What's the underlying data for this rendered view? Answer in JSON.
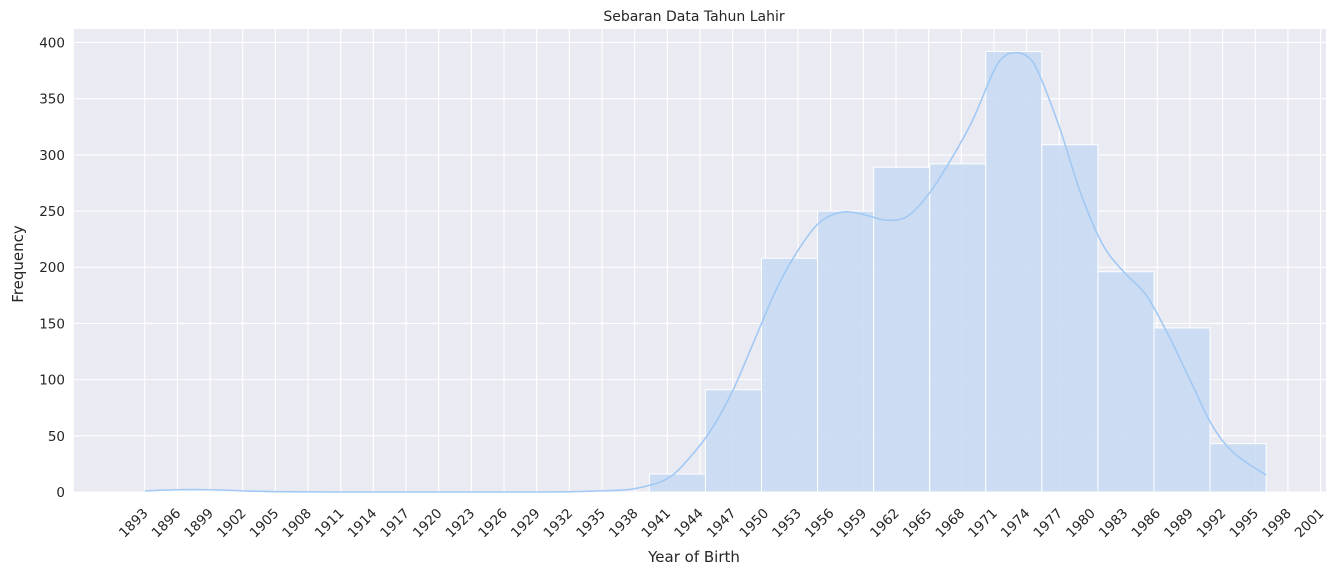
{
  "chart_data": {
    "type": "bar",
    "title": "Sebaran Data Tahun Lahir",
    "xlabel": "Year of Birth",
    "ylabel": "Frequency",
    "xlim": [
      1886.5,
      2001.5
    ],
    "ylim": [
      0,
      412
    ],
    "grid": true,
    "x_ticks": [
      1893,
      1896,
      1899,
      1902,
      1905,
      1908,
      1911,
      1914,
      1917,
      1920,
      1923,
      1926,
      1929,
      1932,
      1935,
      1938,
      1941,
      1944,
      1947,
      1950,
      1953,
      1956,
      1959,
      1962,
      1965,
      1968,
      1971,
      1974,
      1977,
      1980,
      1983,
      1986,
      1989,
      1992,
      1995,
      1998,
      2001
    ],
    "y_ticks": [
      0,
      50,
      100,
      150,
      200,
      250,
      300,
      350,
      400
    ],
    "bins": [
      {
        "start": 1893.0,
        "end": 1898.15,
        "count": 1
      },
      {
        "start": 1898.15,
        "end": 1903.3,
        "count": 1
      },
      {
        "start": 1903.3,
        "end": 1908.45,
        "count": 0
      },
      {
        "start": 1908.45,
        "end": 1913.6,
        "count": 0
      },
      {
        "start": 1913.6,
        "end": 1918.75,
        "count": 0
      },
      {
        "start": 1918.75,
        "end": 1923.9,
        "count": 0
      },
      {
        "start": 1923.9,
        "end": 1929.05,
        "count": 0
      },
      {
        "start": 1929.05,
        "end": 1934.2,
        "count": 0
      },
      {
        "start": 1934.2,
        "end": 1939.35,
        "count": 0
      },
      {
        "start": 1939.35,
        "end": 1944.5,
        "count": 16
      },
      {
        "start": 1944.5,
        "end": 1949.65,
        "count": 91
      },
      {
        "start": 1949.65,
        "end": 1954.8,
        "count": 208
      },
      {
        "start": 1954.8,
        "end": 1959.95,
        "count": 250
      },
      {
        "start": 1959.95,
        "end": 1965.1,
        "count": 289
      },
      {
        "start": 1965.1,
        "end": 1970.25,
        "count": 292
      },
      {
        "start": 1970.25,
        "end": 1975.4,
        "count": 392
      },
      {
        "start": 1975.4,
        "end": 1980.55,
        "count": 309
      },
      {
        "start": 1980.55,
        "end": 1985.7,
        "count": 196
      },
      {
        "start": 1985.7,
        "end": 1990.85,
        "count": 146
      },
      {
        "start": 1990.85,
        "end": 1996.0,
        "count": 43
      }
    ],
    "kde": {
      "x": [
        1893,
        1896,
        1899,
        1902,
        1905,
        1910,
        1920,
        1930,
        1935,
        1938,
        1941,
        1943,
        1945,
        1947,
        1949,
        1951,
        1953,
        1955,
        1957,
        1959,
        1961,
        1963,
        1965,
        1967,
        1969,
        1971,
        1972,
        1973,
        1974,
        1975,
        1977,
        1979,
        1981,
        1983,
        1985,
        1987,
        1989,
        1991,
        1993,
        1996
      ],
      "y": [
        1,
        2,
        2,
        1,
        0.3,
        0,
        0,
        0,
        1,
        3,
        12,
        30,
        55,
        90,
        135,
        180,
        215,
        240,
        249,
        247,
        242,
        245,
        265,
        295,
        330,
        375,
        388,
        391,
        388,
        375,
        325,
        265,
        220,
        195,
        175,
        140,
        100,
        60,
        35,
        15
      ]
    },
    "colors": {
      "bar_fill": "#c6d9f3",
      "bar_edge": "#ffffff",
      "kde_line": "#a1c9f4",
      "plot_bg": "#eaeaf2",
      "grid": "#ffffff"
    }
  }
}
